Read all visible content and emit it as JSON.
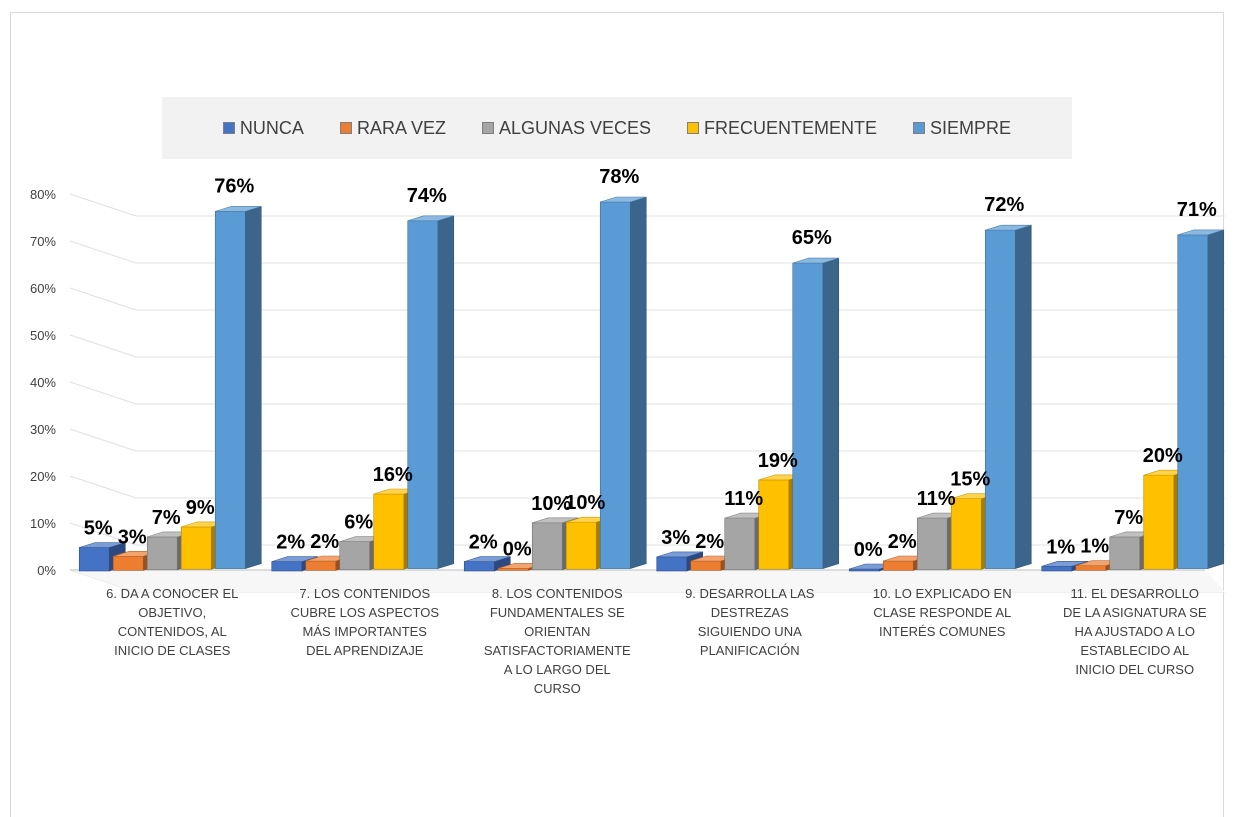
{
  "chart_data": {
    "type": "bar",
    "categories": [
      [
        "6. DA A CONOCER EL",
        "OBJETIVO,",
        "CONTENIDOS, AL",
        "INICIO DE CLASES"
      ],
      [
        "7. LOS CONTENIDOS",
        "CUBRE LOS ASPECTOS",
        "MÁS IMPORTANTES",
        "DEL APRENDIZAJE"
      ],
      [
        "8. LOS CONTENIDOS",
        "FUNDAMENTALES SE",
        "ORIENTAN",
        "SATISFACTORIAMENTE",
        "A LO LARGO DEL",
        "CURSO"
      ],
      [
        "9. DESARROLLA LAS",
        "DESTREZAS",
        "SIGUIENDO UNA",
        "PLANIFICACIÓN"
      ],
      [
        "10. LO EXPLICADO EN",
        "CLASE RESPONDE AL",
        "INTERÉS COMUNES"
      ],
      [
        "11. EL DESARROLLO",
        "DE LA ASIGNATURA SE",
        "HA AJUSTADO A LO",
        "ESTABLECIDO AL",
        "INICIO DEL CURSO"
      ]
    ],
    "series": [
      {
        "name": "NUNCA",
        "color": "#4472c4",
        "values": [
          5,
          2,
          2,
          3,
          0,
          1
        ],
        "labels": [
          "5%",
          "2%",
          "2%",
          "3%",
          "0%",
          "1%"
        ]
      },
      {
        "name": "RARA VEZ",
        "color": "#ed7d31",
        "values": [
          3,
          2,
          0,
          2,
          2,
          1
        ],
        "labels": [
          "3%",
          "2%",
          "0%",
          "2%",
          "2%",
          "1%"
        ]
      },
      {
        "name": "ALGUNAS VECES",
        "color": "#a5a5a5",
        "values": [
          7,
          6,
          10,
          11,
          11,
          7
        ],
        "labels": [
          "7%",
          "6%",
          "10%",
          "11%",
          "11%",
          "7%"
        ]
      },
      {
        "name": "FRECUENTEMENTE",
        "color": "#ffc000",
        "values": [
          9,
          16,
          10,
          19,
          15,
          20
        ],
        "labels": [
          "9%",
          "16%",
          "10%",
          "19%",
          "15%",
          "20%"
        ]
      },
      {
        "name": "SIEMPRE",
        "color": "#5b9bd5",
        "values": [
          76,
          74,
          78,
          65,
          72,
          71
        ],
        "labels": [
          "76%",
          "74%",
          "78%",
          "65%",
          "72%",
          "71%"
        ]
      }
    ],
    "y_ticks": [
      "0%",
      "10%",
      "20%",
      "30%",
      "40%",
      "50%",
      "60%",
      "70%",
      "80%"
    ],
    "ylim": [
      0,
      80
    ],
    "grid": true,
    "legend_position": "top",
    "style": "3d-clustered-column"
  }
}
